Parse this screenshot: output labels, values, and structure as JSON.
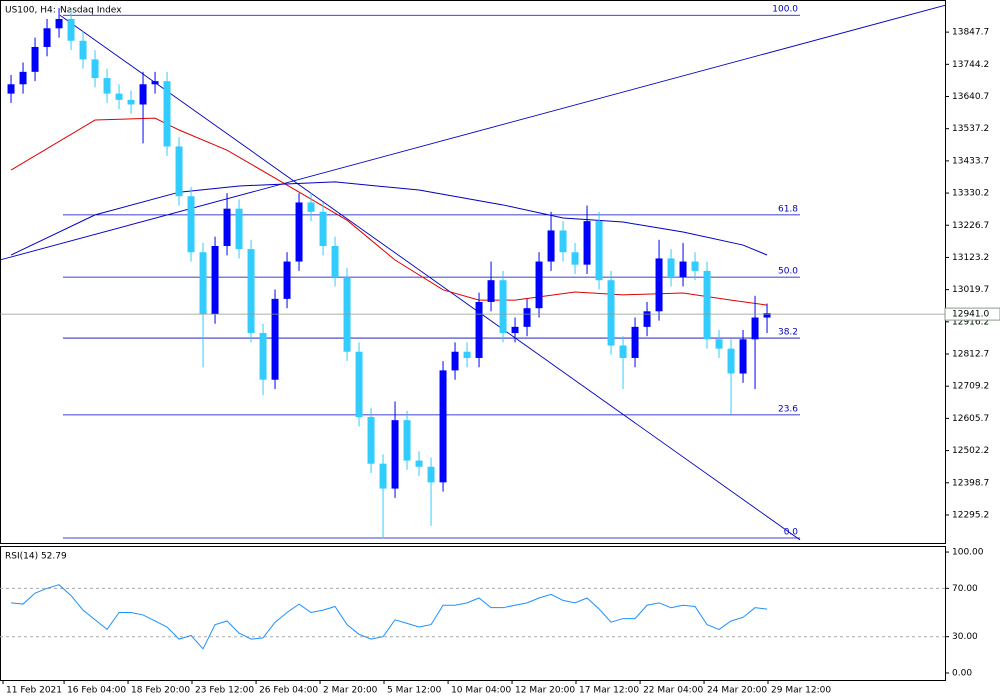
{
  "chart_data": [
    {
      "type": "candlestick",
      "title": "US100, H4:",
      "subtitle": "Nasdaq Index",
      "xlim": [
        -0.92,
        77.83
      ],
      "ylim": [
        12205,
        13951
      ],
      "xticks": [
        {
          "value": -0.67,
          "label": "11 Feb 2021"
        },
        {
          "value": 4.42,
          "label": "16 Feb 04:00"
        },
        {
          "value": 9.75,
          "label": "18 Feb 20:00"
        },
        {
          "value": 15.08,
          "label": "23 Feb 12:00"
        },
        {
          "value": 20.42,
          "label": "26 Feb 04:00"
        },
        {
          "value": 25.75,
          "label": "2 Mar 20:00"
        },
        {
          "value": 31.08,
          "label": "5 Mar 12:00"
        },
        {
          "value": 36.42,
          "label": "10 Mar 04:00"
        },
        {
          "value": 41.75,
          "label": "12 Mar 20:00"
        },
        {
          "value": 47.08,
          "label": "17 Mar 12:00"
        },
        {
          "value": 52.42,
          "label": "22 Mar 04:00"
        },
        {
          "value": 57.75,
          "label": "24 Mar 20:00"
        },
        {
          "value": 63.08,
          "label": "29 Mar 12:00"
        }
      ],
      "yticks": [
        13847.7,
        13744.2,
        13640.7,
        13537.2,
        13433.7,
        13330.2,
        13226.7,
        13123.2,
        13019.7,
        12916.2,
        12812.7,
        12709.2,
        12605.7,
        12502.2,
        12398.7,
        12295.2
      ],
      "up_color": "#0000ff",
      "down_color": "#33ccff",
      "open": [
        13650,
        13680,
        13720,
        13800,
        13860,
        13890,
        13820,
        13760,
        13700,
        13650,
        13630,
        13615,
        13680,
        13690,
        13480,
        13320,
        13140,
        12940,
        13160,
        13280,
        13150,
        12880,
        12730,
        12990,
        13110,
        13300,
        13270,
        13160,
        13060,
        12820,
        12610,
        12460,
        12380,
        12600,
        12470,
        12450,
        12400,
        12760,
        12820,
        12800,
        12980,
        13050,
        12880,
        12900,
        12960,
        13110,
        13210,
        13140,
        13100,
        13240,
        13050,
        12840,
        12800,
        12900,
        12950,
        13120,
        13060,
        13110,
        13080,
        12860,
        12830,
        12750,
        12860,
        12930
      ],
      "high": [
        13710,
        13750,
        13830,
        13890,
        13925,
        13920,
        13850,
        13790,
        13730,
        13680,
        13660,
        13720,
        13720,
        13720,
        13510,
        13350,
        13170,
        13190,
        13330,
        13310,
        13180,
        12910,
        13020,
        13140,
        13330,
        13330,
        13300,
        13190,
        13090,
        12850,
        12640,
        12490,
        12660,
        12630,
        12500,
        12480,
        12790,
        12850,
        12850,
        13010,
        13110,
        13080,
        12930,
        12990,
        13140,
        13270,
        13240,
        13170,
        13290,
        13270,
        13080,
        12870,
        12930,
        12980,
        13180,
        13150,
        13170,
        13140,
        13110,
        12890,
        12860,
        12890,
        13000,
        12975
      ],
      "low": [
        13620,
        13650,
        13690,
        13770,
        13830,
        13790,
        13730,
        13670,
        13620,
        13600,
        13585,
        13490,
        13650,
        13450,
        13290,
        13110,
        12770,
        12910,
        13130,
        13120,
        12850,
        12680,
        12700,
        12960,
        13080,
        13240,
        13130,
        13030,
        12790,
        12580,
        12430,
        12220,
        12350,
        12440,
        12420,
        12260,
        12370,
        12730,
        12770,
        12770,
        12950,
        12850,
        12850,
        12870,
        12930,
        13080,
        13110,
        13070,
        13070,
        13020,
        12810,
        12700,
        12770,
        12870,
        12920,
        13030,
        13030,
        13050,
        12830,
        12800,
        12620,
        12720,
        12700,
        12880
      ],
      "close": [
        13680,
        13720,
        13800,
        13860,
        13890,
        13820,
        13760,
        13700,
        13650,
        13630,
        13615,
        13680,
        13690,
        13480,
        13320,
        13140,
        12940,
        13160,
        13280,
        13150,
        12880,
        12730,
        12990,
        13110,
        13300,
        13270,
        13160,
        13060,
        12820,
        12610,
        12460,
        12380,
        12600,
        12470,
        12450,
        12400,
        12760,
        12820,
        12800,
        12980,
        13050,
        12880,
        12900,
        12960,
        13110,
        13210,
        13140,
        13100,
        13240,
        13050,
        12840,
        12800,
        12900,
        12950,
        13120,
        13060,
        13110,
        13080,
        12860,
        12830,
        12750,
        12860,
        12930,
        12944
      ],
      "series": [
        {
          "color": "#e00000",
          "x": [
            0,
            7,
            12,
            14,
            18,
            23,
            28,
            32,
            36,
            39,
            42,
            47,
            51,
            56,
            60,
            63
          ],
          "values": [
            13404,
            13565,
            13571,
            13533,
            13468,
            13356,
            13243,
            13115,
            13019,
            12986,
            12986,
            13012,
            13003,
            13009,
            12986,
            12970
          ]
        },
        {
          "color": "#0000c0",
          "x": [
            0,
            7,
            14,
            19,
            27,
            34,
            41,
            46,
            51,
            56,
            61,
            63
          ],
          "values": [
            13131,
            13260,
            13333,
            13353,
            13366,
            13340,
            13292,
            13250,
            13237,
            13205,
            13163,
            13131
          ]
        }
      ],
      "lines": [
        {
          "color": "#0000c0",
          "x": [
            4.08,
            65.75
          ],
          "values": [
            13902,
            12215
          ]
        },
        {
          "color": "#0000c0",
          "x": [
            -0.92,
            77.83
          ],
          "values": [
            13115,
            13934
          ]
        }
      ],
      "fib_x": [
        4.33,
        65.75
      ],
      "fib_levels": [
        {
          "label": "100.0",
          "value": 13902
        },
        {
          "label": "61.8",
          "value": 13260
        },
        {
          "label": "50.0",
          "value": 13060
        },
        {
          "label": "38.2",
          "value": 12864
        },
        {
          "label": "23.6",
          "value": 12617
        },
        {
          "label": "0.0",
          "value": 12221
        }
      ],
      "current_price": {
        "value": 12941.0,
        "label": "12941.0"
      }
    },
    {
      "type": "line",
      "title": "RSI(14) 52.79",
      "color": "#1e90ff",
      "ylim": [
        -5.8,
        105
      ],
      "yticks": [
        {
          "value": 100,
          "label": "100.00"
        },
        {
          "value": 70,
          "label": "70.00"
        },
        {
          "value": 30,
          "label": "30.00"
        },
        {
          "value": 0,
          "label": "0.00"
        }
      ],
      "levels": [
        70,
        30
      ],
      "values": [
        58,
        57,
        66,
        70,
        73,
        64,
        52,
        44,
        36,
        50,
        50,
        48,
        43,
        38,
        28,
        31,
        20,
        40,
        43,
        33,
        28,
        29,
        42,
        50,
        57,
        50,
        52,
        55,
        40,
        32,
        28,
        30,
        44,
        41,
        38,
        40,
        56,
        56,
        58,
        62,
        54,
        54,
        56,
        58,
        62,
        65,
        60,
        58,
        62,
        53,
        42,
        45,
        45,
        56,
        58,
        54,
        56,
        55,
        40,
        36,
        43,
        46,
        54,
        52.79
      ]
    }
  ]
}
